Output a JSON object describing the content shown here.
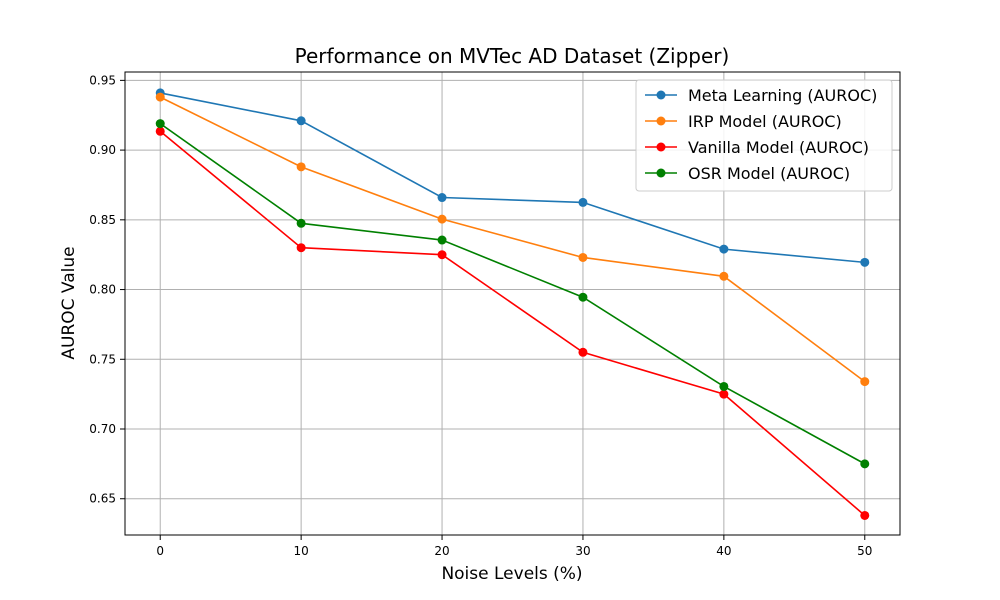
{
  "chart_data": {
    "type": "line",
    "title": "Performance on MVTec AD Dataset (Zipper)",
    "xlabel": "Noise Levels (%)",
    "ylabel": "AUROC Value",
    "x": [
      0,
      10,
      20,
      30,
      40,
      50
    ],
    "x_ticks": [
      "0",
      "10",
      "20",
      "30",
      "40",
      "50"
    ],
    "y_ticks": [
      "0.65",
      "0.70",
      "0.75",
      "0.80",
      "0.85",
      "0.90",
      "0.95"
    ],
    "xlim": [
      -2.5,
      52.5
    ],
    "ylim": [
      0.624,
      0.956
    ],
    "grid": true,
    "legend_position": "top-right",
    "series": [
      {
        "name": "Meta Learning (AUROC)",
        "color": "#1f77b4",
        "values": [
          0.941,
          0.921,
          0.866,
          0.8625,
          0.829,
          0.8195
        ]
      },
      {
        "name": "IRP Model (AUROC)",
        "color": "#ff7f0e",
        "values": [
          0.938,
          0.888,
          0.8505,
          0.823,
          0.8095,
          0.734
        ]
      },
      {
        "name": "Vanilla Model (AUROC)",
        "color": "#ff0000",
        "values": [
          0.9135,
          0.83,
          0.825,
          0.755,
          0.725,
          0.638
        ]
      },
      {
        "name": "OSR Model (AUROC)",
        "color": "#008000",
        "values": [
          0.919,
          0.8475,
          0.8355,
          0.7945,
          0.7305,
          0.675
        ]
      }
    ]
  }
}
